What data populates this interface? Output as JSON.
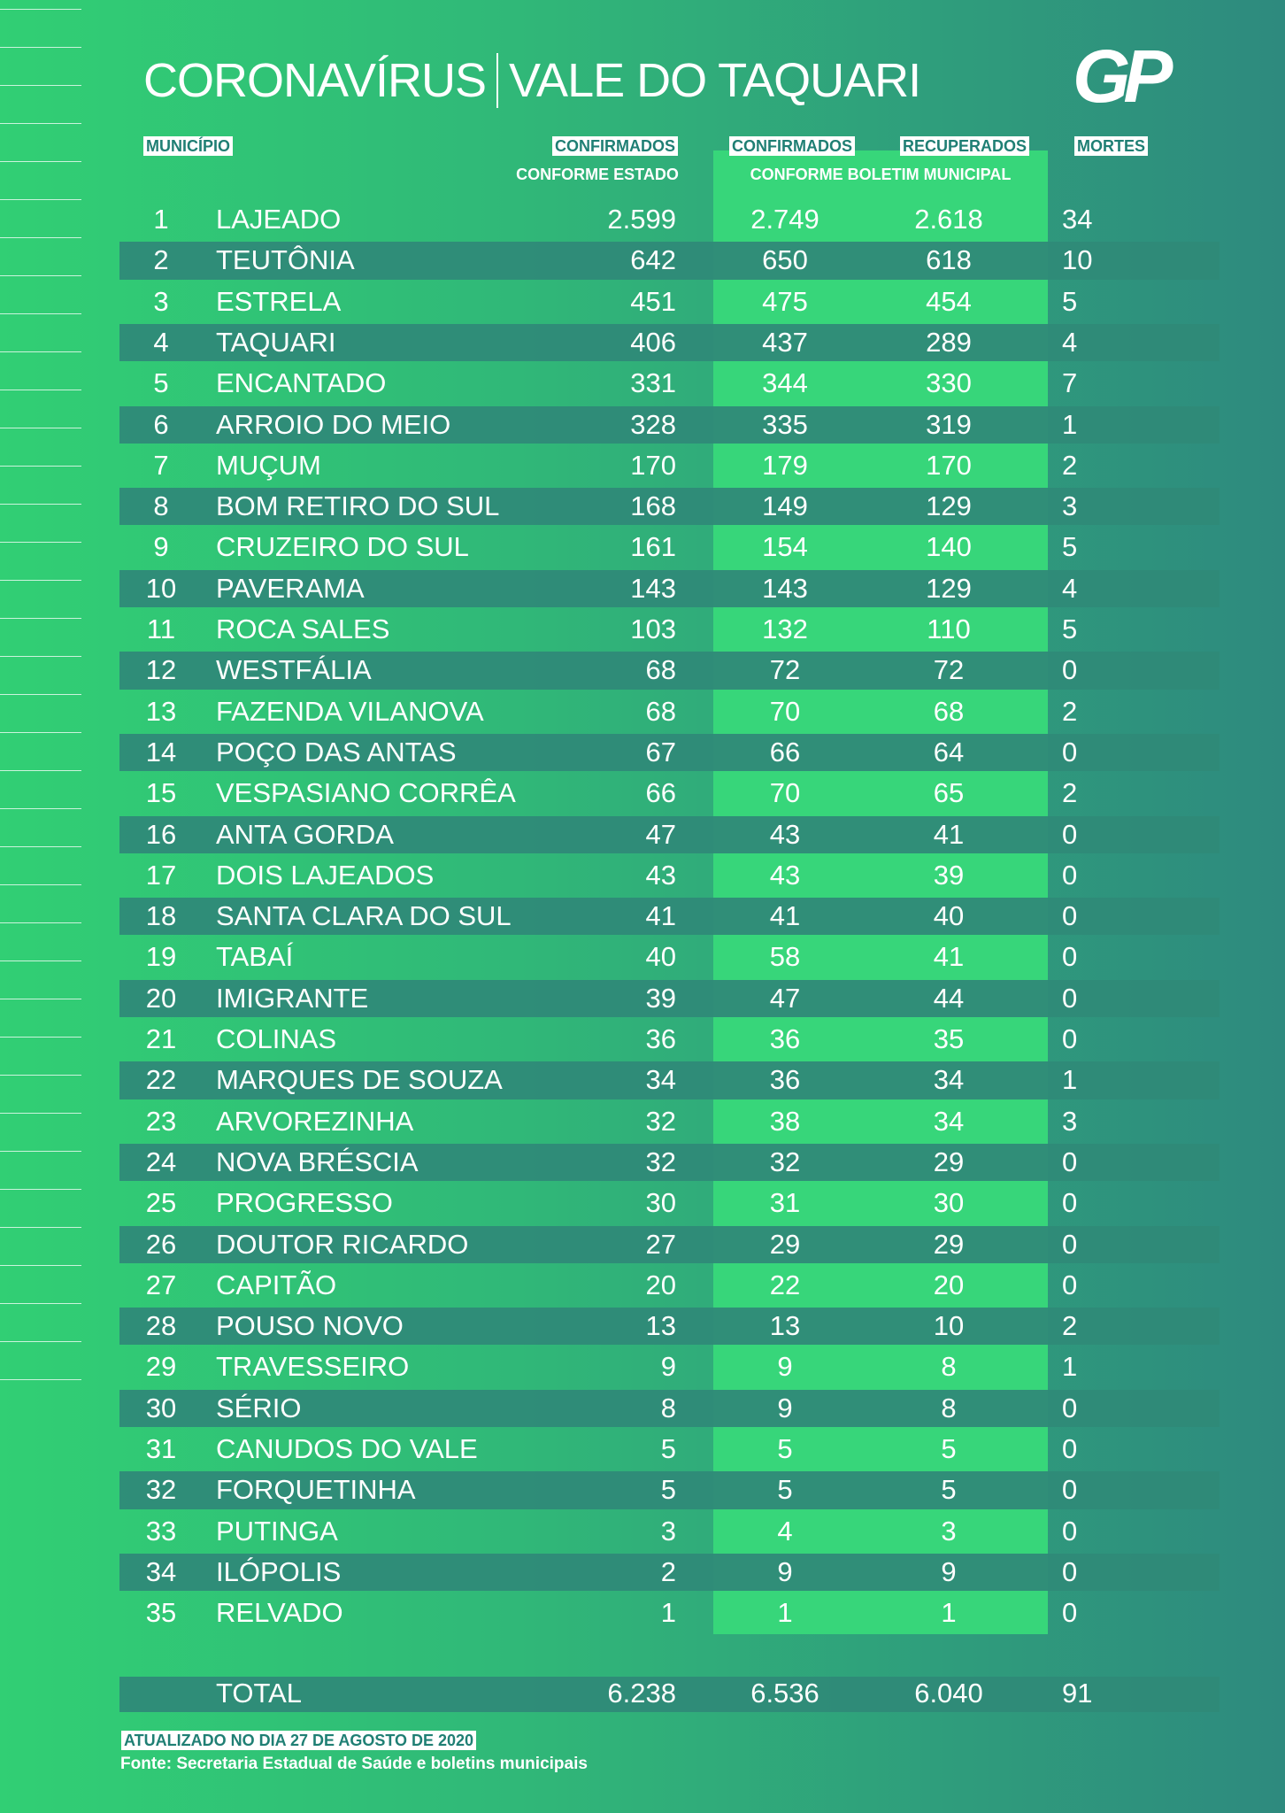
{
  "header": {
    "title_left": "CORONAVÍRUS",
    "title_right": "VALE DO TAQUARI",
    "logo": "GP"
  },
  "table": {
    "columns": {
      "municipio": "MUNICÍPIO",
      "confirmados_estado": "CONFIRMADOS",
      "conforme_estado": "CONFORME ESTADO",
      "confirmados_municipal": "CONFIRMADOS",
      "recuperados": "RECUPERADOS",
      "conforme_boletim": "CONFORME BOLETIM MUNICIPAL",
      "mortes": "MORTES"
    },
    "rows": [
      [
        "1",
        "LAJEADO",
        "2.599",
        "2.749",
        "2.618",
        "34"
      ],
      [
        "2",
        "TEUTÔNIA",
        "642",
        "650",
        "618",
        "10"
      ],
      [
        "3",
        "ESTRELA",
        "451",
        "475",
        "454",
        "5"
      ],
      [
        "4",
        "TAQUARI",
        "406",
        "437",
        "289",
        "4"
      ],
      [
        "5",
        "ENCANTADO",
        "331",
        "344",
        "330",
        "7"
      ],
      [
        "6",
        "ARROIO DO MEIO",
        "328",
        "335",
        "319",
        "1"
      ],
      [
        "7",
        "MUÇUM",
        "170",
        "179",
        "170",
        "2"
      ],
      [
        "8",
        "BOM RETIRO DO SUL",
        "168",
        "149",
        "129",
        "3"
      ],
      [
        "9",
        "CRUZEIRO DO SUL",
        "161",
        "154",
        "140",
        "5"
      ],
      [
        "10",
        "PAVERAMA",
        "143",
        "143",
        "129",
        "4"
      ],
      [
        "11",
        "ROCA SALES",
        "103",
        "132",
        "110",
        "5"
      ],
      [
        "12",
        "WESTFÁLIA",
        "68",
        "72",
        "72",
        "0"
      ],
      [
        "13",
        "FAZENDA VILANOVA",
        "68",
        "70",
        "68",
        "2"
      ],
      [
        "14",
        "POÇO DAS ANTAS",
        "67",
        "66",
        "64",
        "0"
      ],
      [
        "15",
        "VESPASIANO CORRÊA",
        "66",
        "70",
        "65",
        "2"
      ],
      [
        "16",
        "ANTA GORDA",
        "47",
        "43",
        "41",
        "0"
      ],
      [
        "17",
        "DOIS LAJEADOS",
        "43",
        "43",
        "39",
        "0"
      ],
      [
        "18",
        "SANTA CLARA DO SUL",
        "41",
        "41",
        "40",
        "0"
      ],
      [
        "19",
        "TABAÍ",
        "40",
        "58",
        "41",
        "0"
      ],
      [
        "20",
        "IMIGRANTE",
        "39",
        "47",
        "44",
        "0"
      ],
      [
        "21",
        "COLINAS",
        "36",
        "36",
        "35",
        "0"
      ],
      [
        "22",
        "MARQUES DE SOUZA",
        "34",
        "36",
        "34",
        "1"
      ],
      [
        "23",
        "ARVOREZINHA",
        "32",
        "38",
        "34",
        "3"
      ],
      [
        "24",
        "NOVA BRÉSCIA",
        "32",
        "32",
        "29",
        "0"
      ],
      [
        "25",
        "PROGRESSO",
        "30",
        "31",
        "30",
        "0"
      ],
      [
        "26",
        "DOUTOR RICARDO",
        "27",
        "29",
        "29",
        "0"
      ],
      [
        "27",
        "CAPITÃO",
        "20",
        "22",
        "20",
        "0"
      ],
      [
        "28",
        "POUSO NOVO",
        "13",
        "13",
        "10",
        "2"
      ],
      [
        "29",
        "TRAVESSEIRO",
        "9",
        "9",
        "8",
        "1"
      ],
      [
        "30",
        "SÉRIO",
        "8",
        "9",
        "8",
        "0"
      ],
      [
        "31",
        "CANUDOS DO VALE",
        "5",
        "5",
        "5",
        "0"
      ],
      [
        "32",
        "FORQUETINHA",
        "5",
        "5",
        "5",
        "0"
      ],
      [
        "33",
        "PUTINGA",
        "3",
        "4",
        "3",
        "0"
      ],
      [
        "34",
        "ILÓPOLIS",
        "2",
        "9",
        "9",
        "0"
      ],
      [
        "35",
        "RELVADO",
        "1",
        "1",
        "1",
        "0"
      ]
    ],
    "total": [
      "TOTAL",
      "6.238",
      "6.536",
      "6.040",
      "91"
    ]
  },
  "footer": {
    "updated": "ATUALIZADO NO DIA 27 DE AGOSTO DE 2020",
    "source": "Fonte: Secretaria Estadual de Saúde e boletins municipais"
  }
}
